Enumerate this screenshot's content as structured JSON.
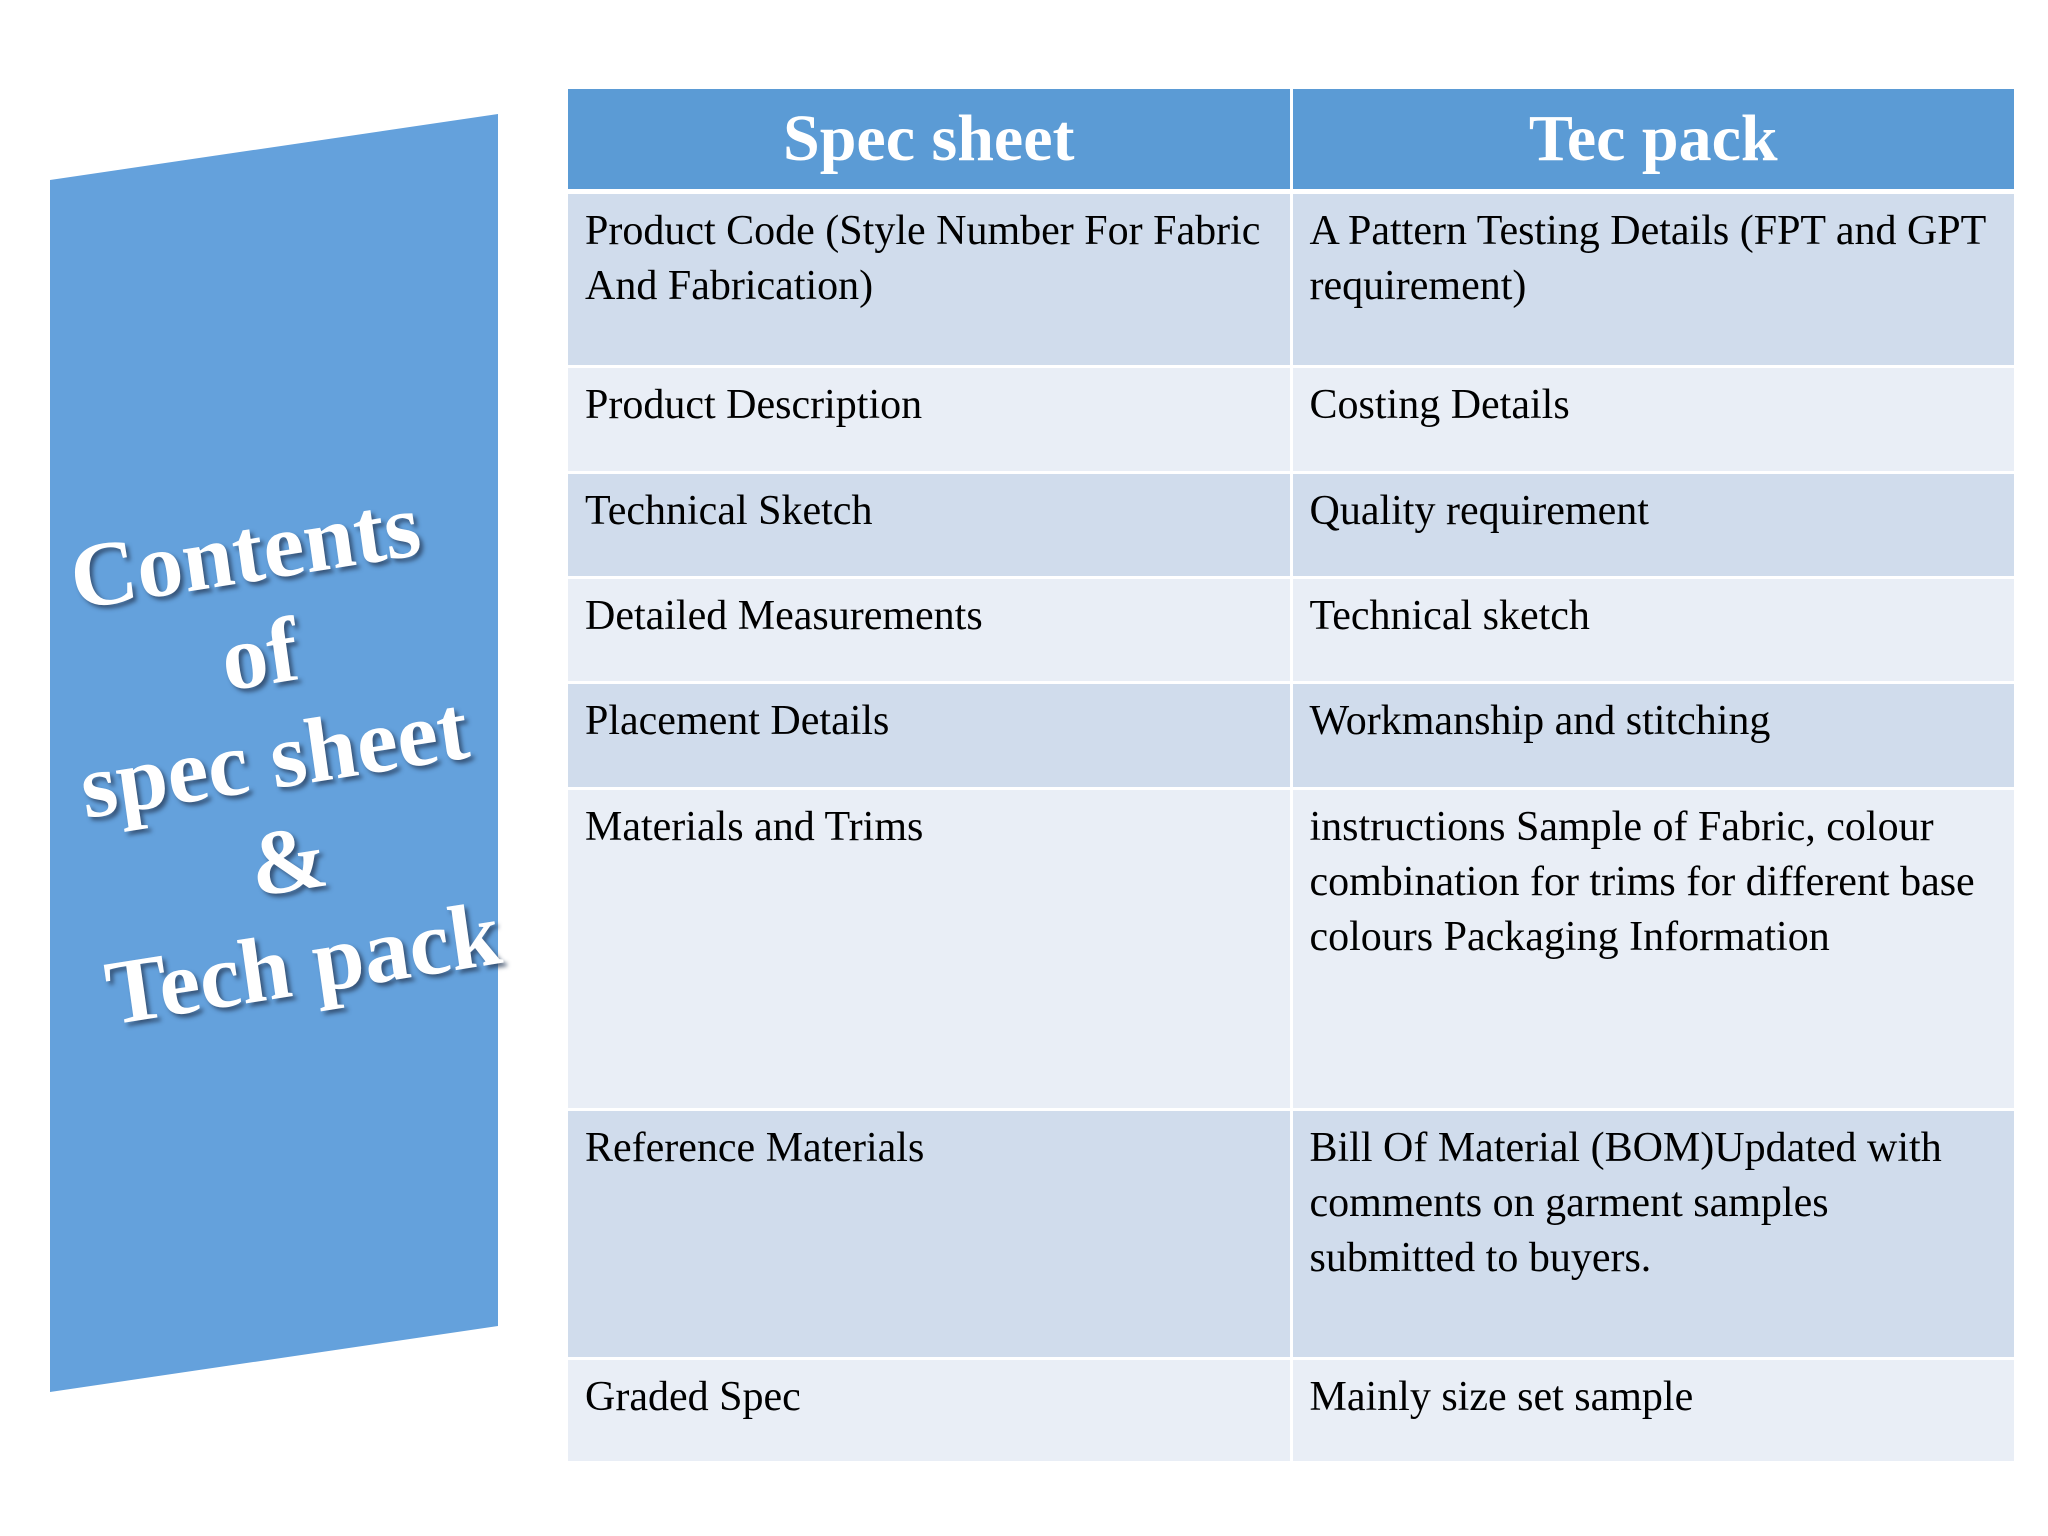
{
  "side_panel": {
    "title_lines": [
      "Contents",
      "of",
      "spec sheet",
      "&",
      "Tech pack"
    ],
    "color": "#64a1dc"
  },
  "table": {
    "headers": [
      "Spec sheet",
      "Tec pack"
    ],
    "header_color": "#5b9bd5",
    "rows": [
      [
        "Product Code (Style Number For Fabric And Fabrication)",
        "A Pattern Testing Details (FPT and GPT requirement)"
      ],
      [
        "Product Description",
        "Costing Details"
      ],
      [
        "Technical Sketch",
        "Quality requirement"
      ],
      [
        "Detailed Measurements",
        "Technical sketch"
      ],
      [
        "Placement Details",
        "Workmanship and stitching"
      ],
      [
        "Materials and Trims",
        "instructions Sample of Fabric, colour combination for trims for different base colours Packaging Information"
      ],
      [
        "Reference Materials",
        "Bill Of Material (BOM)Updated with comments on garment samples submitted to buyers."
      ],
      [
        "Graded Spec",
        "Mainly size set sample"
      ]
    ]
  }
}
